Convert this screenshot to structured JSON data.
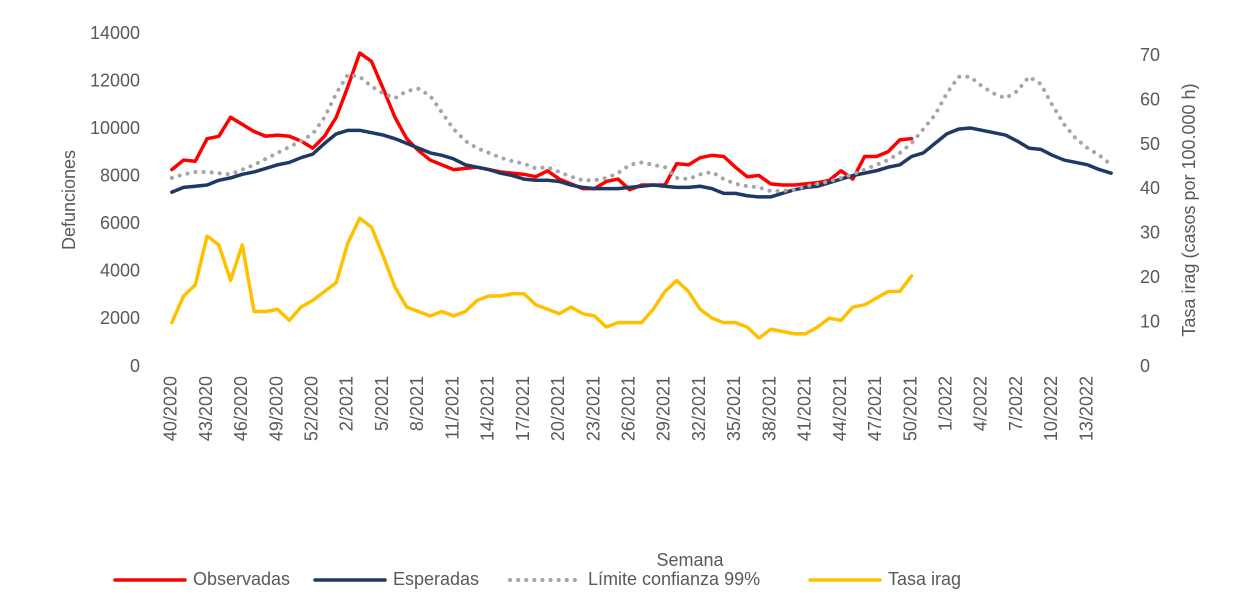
{
  "chart_data": {
    "type": "line",
    "y_label": "Defunciones",
    "y2_label": "Tasa irag (casos por 100.000 h)",
    "x_label": "Semana",
    "categories": [
      "40/2020",
      null,
      null,
      "43/2020",
      null,
      null,
      "46/2020",
      null,
      null,
      "49/2020",
      null,
      null,
      "52/2020",
      null,
      null,
      "2/2021",
      null,
      null,
      "5/2021",
      null,
      null,
      "8/2021",
      null,
      null,
      "11/2021",
      null,
      null,
      "14/2021",
      null,
      null,
      "17/2021",
      null,
      null,
      "20/2021",
      null,
      null,
      "23/2021",
      null,
      null,
      "26/2021",
      null,
      null,
      "29/2021",
      null,
      null,
      "32/2021",
      null,
      null,
      "35/2021",
      null,
      null,
      "38/2021",
      null,
      null,
      "41/2021",
      null,
      null,
      "44/2021",
      null,
      null,
      "47/2021",
      null,
      null,
      "50/2021",
      null,
      null,
      "1/2022",
      null,
      null,
      "4/2022",
      null,
      null,
      "7/2022",
      null,
      null,
      "10/2022",
      null,
      null,
      "13/2022",
      null,
      null
    ],
    "ylim": [
      0,
      14000
    ],
    "yticks": [
      0,
      2000,
      4000,
      6000,
      8000,
      10000,
      12000,
      14000
    ],
    "y2lim": [
      0,
      75
    ],
    "y2ticks": [
      0,
      10,
      20,
      30,
      40,
      50,
      60,
      70
    ],
    "legend": "bottom",
    "series": [
      {
        "name": "Observadas",
        "color": "#ff0000",
        "line_style": "solid",
        "values": [
          8300,
          8700,
          8650,
          9600,
          9700,
          10500,
          10200,
          9900,
          9700,
          9750,
          9700,
          9500,
          9200,
          9700,
          10500,
          11800,
          13200,
          12850,
          11700,
          10500,
          9600,
          9100,
          8700,
          8500,
          8300,
          8350,
          8400,
          8300,
          8200,
          8150,
          8100,
          8000,
          8250,
          7900,
          7700,
          7500,
          7500,
          7800,
          7900,
          7450,
          7650,
          7650,
          7650,
          8550,
          8500,
          8800,
          8900,
          8850,
          8400,
          8000,
          8050,
          7700,
          7650,
          7650,
          7700,
          7750,
          7850,
          8250,
          7900,
          8850,
          8850,
          9050,
          9550,
          9600,
          null,
          null,
          null,
          null,
          null,
          null,
          null,
          null,
          null,
          null,
          null,
          null,
          null,
          null,
          null,
          null,
          null
        ]
      },
      {
        "name": "Esperadas",
        "color": "#203864",
        "line_style": "solid",
        "values": [
          7350,
          7550,
          7600,
          7650,
          7850,
          7950,
          8100,
          8200,
          8350,
          8500,
          8600,
          8800,
          8950,
          9400,
          9800,
          9950,
          9950,
          9850,
          9750,
          9600,
          9400,
          9200,
          9000,
          8900,
          8750,
          8500,
          8400,
          8300,
          8150,
          8050,
          7900,
          7850,
          7850,
          7800,
          7650,
          7550,
          7500,
          7500,
          7500,
          7550,
          7600,
          7650,
          7600,
          7550,
          7550,
          7600,
          7500,
          7300,
          7300,
          7200,
          7150,
          7150,
          7300,
          7450,
          7550,
          7600,
          7750,
          7900,
          8050,
          8150,
          8250,
          8400,
          8500,
          8850,
          9000,
          9400,
          9800,
          10000,
          10050,
          9950,
          9850,
          9750,
          9500,
          9200,
          9150,
          8900,
          8700,
          8600,
          8500,
          8300,
          8150
        ]
      },
      {
        "name": "Límite confianza 99%",
        "color": "#a6a6a6",
        "line_style": "dotted",
        "values": [
          7950,
          8100,
          8200,
          8200,
          8150,
          8100,
          8300,
          8500,
          8750,
          9000,
          9250,
          9500,
          9800,
          10500,
          11500,
          12300,
          12200,
          11800,
          11500,
          11300,
          11600,
          11700,
          11400,
          10700,
          10000,
          9500,
          9200,
          9000,
          8800,
          8650,
          8550,
          8350,
          8400,
          8200,
          8000,
          7850,
          7850,
          7950,
          8150,
          8500,
          8600,
          8500,
          8400,
          7950,
          7900,
          8100,
          8200,
          7900,
          7700,
          7600,
          7550,
          7400,
          7400,
          7450,
          7600,
          7700,
          7800,
          7950,
          8100,
          8300,
          8500,
          8700,
          9000,
          9400,
          10000,
          10600,
          11500,
          12200,
          12200,
          11800,
          11500,
          11300,
          11600,
          12200,
          11900,
          11000,
          10200,
          9600,
          9200,
          8900,
          8500
        ]
      },
      {
        "name": "Tasa irag",
        "color": "#ffc000",
        "line_style": "solid",
        "axis": "y2",
        "values": [
          10,
          16,
          18.5,
          29.5,
          27.5,
          19.5,
          27.5,
          12.5,
          12.5,
          13,
          10.5,
          13.5,
          15,
          17,
          19,
          28,
          33.5,
          31.5,
          25,
          18,
          13.5,
          12.5,
          11.5,
          12.5,
          11.5,
          12.5,
          15,
          16,
          16,
          16.5,
          16.5,
          14,
          13,
          12,
          13.5,
          12,
          11.5,
          9,
          10,
          10,
          10,
          13,
          17,
          19.5,
          17,
          13,
          11,
          10,
          10,
          9,
          6.5,
          8.5,
          8,
          7.5,
          7.5,
          9,
          11,
          10.5,
          13.5,
          14,
          15.5,
          17,
          17,
          20.5,
          null,
          null,
          null,
          null,
          null,
          null,
          null,
          null,
          null,
          null,
          null,
          null,
          null,
          null,
          null,
          null,
          null
        ]
      }
    ]
  }
}
